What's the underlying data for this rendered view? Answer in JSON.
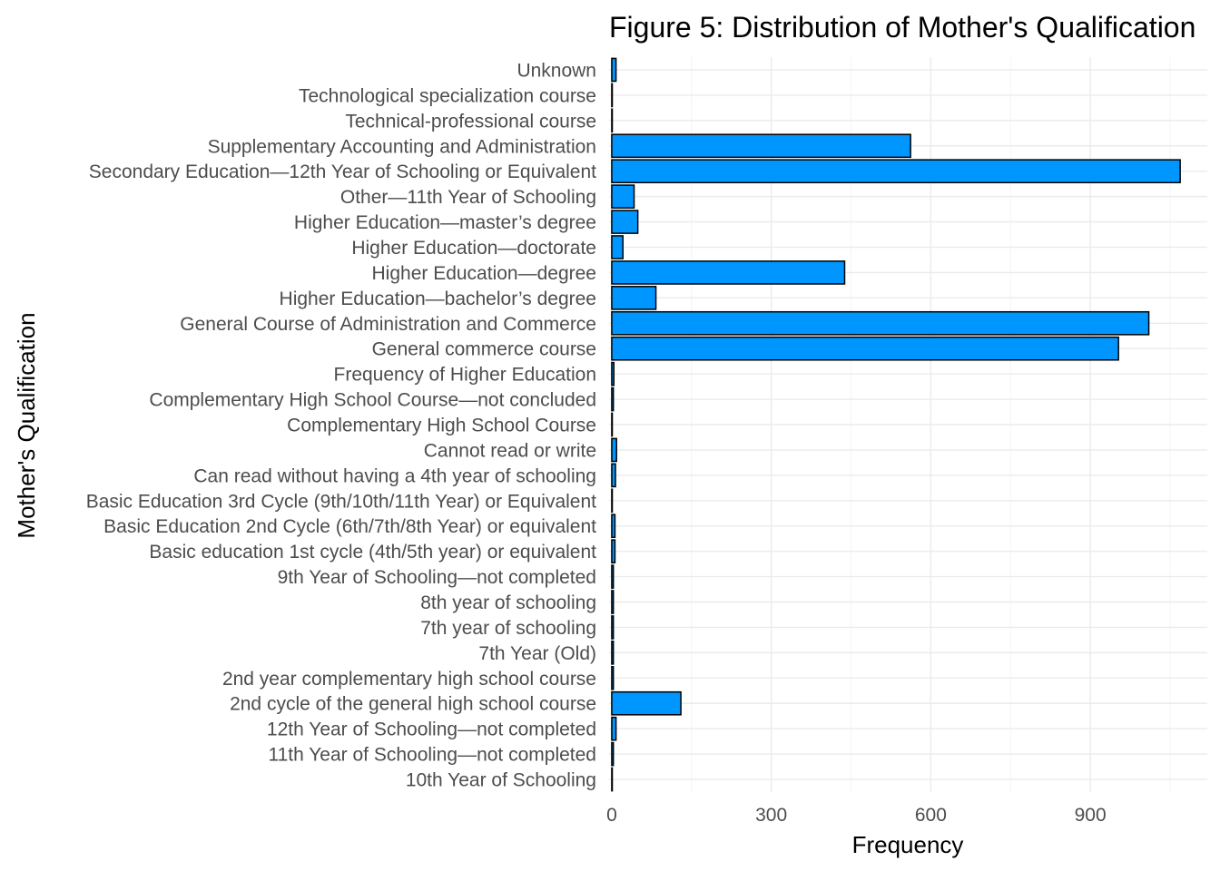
{
  "chart_data": {
    "type": "bar",
    "orientation": "horizontal",
    "title": "Figure 5: Distribution of Mother's Qualification",
    "xlabel": "Frequency",
    "ylabel": "Mother's Qualification",
    "xlim": [
      -5,
      1120
    ],
    "x_ticks": [
      0,
      300,
      600,
      900
    ],
    "grid": true,
    "bar_color": "#0096FF",
    "bar_border_color": "#000000",
    "categories": [
      "10th Year of Schooling",
      "11th Year of Schooling—not completed",
      "12th Year of Schooling—not completed",
      "2nd cycle of the general high school course",
      "2nd year complementary high school course",
      "7th Year (Old)",
      "7th year of schooling",
      "8th year of schooling",
      "9th Year of Schooling—not completed",
      "Basic education 1st cycle (4th/5th year) or equivalent",
      "Basic Education 2nd Cycle (6th/7th/8th Year) or equivalent",
      "Basic Education 3rd Cycle (9th/10th/11th Year) or Equivalent",
      "Can read without having a 4th year of schooling",
      "Cannot read or write",
      "Complementary High School Course",
      "Complementary High School Course—not concluded",
      "Frequency of Higher Education",
      "General commerce course",
      "General Course of Administration and Commerce",
      "Higher Education—bachelor’s degree",
      "Higher Education—degree",
      "Higher Education—doctorate",
      "Higher Education—master’s degree",
      "Other—11th Year of Schooling",
      "Secondary Education—12th Year of Schooling or Equivalent",
      "Supplementary Accounting and Administration",
      "Technical-professional course",
      "Technological specialization course",
      "Unknown"
    ],
    "values": [
      1,
      3,
      8,
      130,
      3,
      3,
      3,
      3,
      3,
      6,
      6,
      1,
      7,
      9,
      1,
      3,
      4,
      953,
      1010,
      83,
      438,
      21,
      49,
      42,
      1069,
      562,
      1,
      1,
      8
    ]
  }
}
